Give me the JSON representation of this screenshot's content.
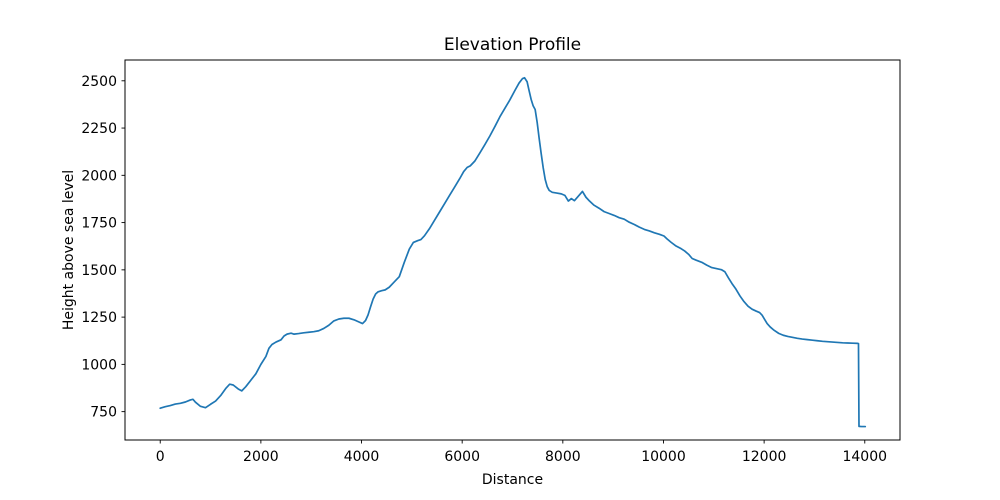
{
  "figure": {
    "background": "#ffffff"
  },
  "chart_data": {
    "type": "line",
    "title": "Elevation Profile",
    "xlabel": "Distance",
    "ylabel": "Height above sea level",
    "xlim": [
      -700,
      14700
    ],
    "ylim": [
      600,
      2610
    ],
    "x_ticks": [
      0,
      2000,
      4000,
      6000,
      8000,
      10000,
      12000,
      14000
    ],
    "y_ticks": [
      750,
      1000,
      1250,
      1500,
      1750,
      2000,
      2250,
      2500
    ],
    "grid": false,
    "legend_position": "none",
    "line_color": "#1f77b4",
    "line_width": 1.7,
    "axis_color": "#000000",
    "series_name": "elevation",
    "points": [
      [
        0,
        768
      ],
      [
        100,
        776
      ],
      [
        200,
        782
      ],
      [
        300,
        790
      ],
      [
        400,
        794
      ],
      [
        500,
        801
      ],
      [
        600,
        812
      ],
      [
        650,
        815
      ],
      [
        700,
        800
      ],
      [
        800,
        778
      ],
      [
        900,
        771
      ],
      [
        1000,
        789
      ],
      [
        1100,
        806
      ],
      [
        1200,
        835
      ],
      [
        1300,
        872
      ],
      [
        1380,
        895
      ],
      [
        1450,
        891
      ],
      [
        1550,
        870
      ],
      [
        1620,
        860
      ],
      [
        1700,
        882
      ],
      [
        1800,
        916
      ],
      [
        1900,
        950
      ],
      [
        2000,
        1000
      ],
      [
        2100,
        1042
      ],
      [
        2160,
        1085
      ],
      [
        2220,
        1105
      ],
      [
        2300,
        1118
      ],
      [
        2400,
        1130
      ],
      [
        2460,
        1150
      ],
      [
        2520,
        1160
      ],
      [
        2600,
        1165
      ],
      [
        2660,
        1160
      ],
      [
        2750,
        1163
      ],
      [
        2850,
        1167
      ],
      [
        2950,
        1170
      ],
      [
        3050,
        1173
      ],
      [
        3150,
        1178
      ],
      [
        3250,
        1190
      ],
      [
        3350,
        1207
      ],
      [
        3450,
        1230
      ],
      [
        3550,
        1240
      ],
      [
        3650,
        1244
      ],
      [
        3750,
        1244
      ],
      [
        3850,
        1236
      ],
      [
        3950,
        1224
      ],
      [
        4020,
        1216
      ],
      [
        4080,
        1232
      ],
      [
        4130,
        1262
      ],
      [
        4180,
        1305
      ],
      [
        4230,
        1345
      ],
      [
        4280,
        1372
      ],
      [
        4330,
        1384
      ],
      [
        4400,
        1390
      ],
      [
        4470,
        1394
      ],
      [
        4550,
        1408
      ],
      [
        4650,
        1436
      ],
      [
        4750,
        1464
      ],
      [
        4850,
        1540
      ],
      [
        4950,
        1610
      ],
      [
        5030,
        1645
      ],
      [
        5120,
        1655
      ],
      [
        5180,
        1660
      ],
      [
        5250,
        1680
      ],
      [
        5350,
        1718
      ],
      [
        5450,
        1762
      ],
      [
        5550,
        1806
      ],
      [
        5650,
        1850
      ],
      [
        5750,
        1894
      ],
      [
        5850,
        1938
      ],
      [
        5950,
        1982
      ],
      [
        6030,
        2020
      ],
      [
        6100,
        2042
      ],
      [
        6160,
        2050
      ],
      [
        6250,
        2075
      ],
      [
        6350,
        2118
      ],
      [
        6450,
        2162
      ],
      [
        6550,
        2208
      ],
      [
        6650,
        2258
      ],
      [
        6750,
        2310
      ],
      [
        6850,
        2355
      ],
      [
        6950,
        2400
      ],
      [
        7050,
        2450
      ],
      [
        7130,
        2488
      ],
      [
        7200,
        2512
      ],
      [
        7240,
        2516
      ],
      [
        7290,
        2495
      ],
      [
        7330,
        2448
      ],
      [
        7370,
        2402
      ],
      [
        7410,
        2368
      ],
      [
        7450,
        2348
      ],
      [
        7490,
        2280
      ],
      [
        7530,
        2195
      ],
      [
        7570,
        2115
      ],
      [
        7610,
        2040
      ],
      [
        7650,
        1978
      ],
      [
        7690,
        1940
      ],
      [
        7730,
        1920
      ],
      [
        7790,
        1910
      ],
      [
        7880,
        1906
      ],
      [
        7970,
        1902
      ],
      [
        8040,
        1894
      ],
      [
        8110,
        1864
      ],
      [
        8170,
        1877
      ],
      [
        8230,
        1866
      ],
      [
        8310,
        1890
      ],
      [
        8390,
        1915
      ],
      [
        8460,
        1884
      ],
      [
        8530,
        1864
      ],
      [
        8620,
        1842
      ],
      [
        8720,
        1826
      ],
      [
        8820,
        1808
      ],
      [
        8920,
        1798
      ],
      [
        9020,
        1788
      ],
      [
        9120,
        1776
      ],
      [
        9220,
        1768
      ],
      [
        9320,
        1752
      ],
      [
        9420,
        1740
      ],
      [
        9520,
        1726
      ],
      [
        9620,
        1714
      ],
      [
        9720,
        1706
      ],
      [
        9820,
        1696
      ],
      [
        9920,
        1688
      ],
      [
        10010,
        1679
      ],
      [
        10070,
        1664
      ],
      [
        10150,
        1646
      ],
      [
        10250,
        1626
      ],
      [
        10350,
        1612
      ],
      [
        10420,
        1600
      ],
      [
        10500,
        1582
      ],
      [
        10570,
        1560
      ],
      [
        10650,
        1551
      ],
      [
        10760,
        1540
      ],
      [
        10860,
        1525
      ],
      [
        10960,
        1512
      ],
      [
        11050,
        1507
      ],
      [
        11150,
        1501
      ],
      [
        11220,
        1490
      ],
      [
        11290,
        1458
      ],
      [
        11360,
        1428
      ],
      [
        11440,
        1398
      ],
      [
        11520,
        1362
      ],
      [
        11600,
        1332
      ],
      [
        11680,
        1308
      ],
      [
        11760,
        1292
      ],
      [
        11840,
        1282
      ],
      [
        11910,
        1274
      ],
      [
        11960,
        1260
      ],
      [
        12010,
        1238
      ],
      [
        12060,
        1216
      ],
      [
        12120,
        1198
      ],
      [
        12200,
        1180
      ],
      [
        12290,
        1164
      ],
      [
        12380,
        1154
      ],
      [
        12470,
        1148
      ],
      [
        12560,
        1143
      ],
      [
        12660,
        1138
      ],
      [
        12760,
        1134
      ],
      [
        12860,
        1131
      ],
      [
        12960,
        1128
      ],
      [
        13060,
        1125
      ],
      [
        13160,
        1122
      ],
      [
        13260,
        1120
      ],
      [
        13360,
        1118
      ],
      [
        13460,
        1116
      ],
      [
        13560,
        1114
      ],
      [
        13660,
        1113
      ],
      [
        13760,
        1112
      ],
      [
        13860,
        1111
      ],
      [
        13875,
        1110
      ],
      [
        13885,
        672
      ],
      [
        13940,
        671
      ],
      [
        14010,
        671
      ]
    ]
  }
}
